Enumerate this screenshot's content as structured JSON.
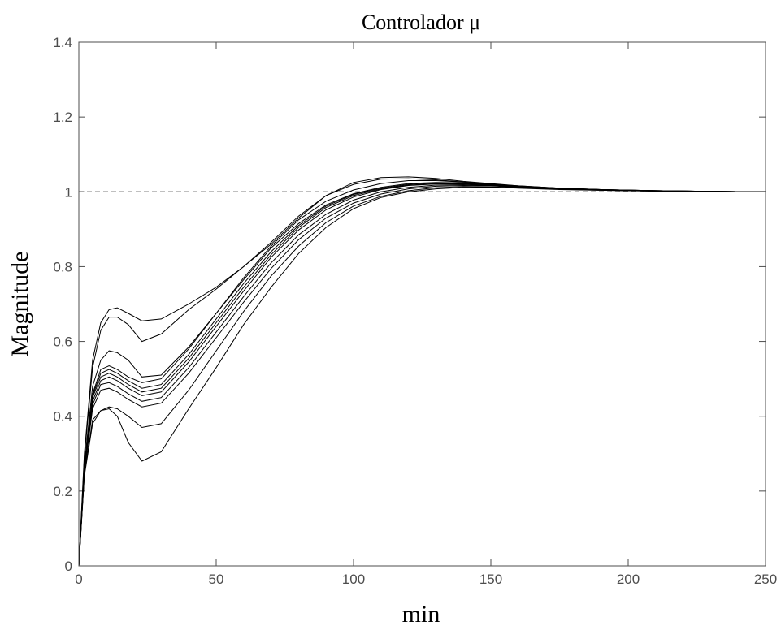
{
  "chart_data": {
    "type": "line",
    "title": "Controlador μ",
    "xlabel": "min",
    "ylabel": "Magnitude",
    "xlim": [
      0,
      250
    ],
    "ylim": [
      0,
      1.4
    ],
    "xticks": [
      0,
      50,
      100,
      150,
      200,
      250
    ],
    "yticks": [
      0,
      0.2,
      0.4,
      0.6,
      0.8,
      1,
      1.2,
      1.4
    ],
    "xtick_labels": [
      "0",
      "50",
      "100",
      "150",
      "200",
      "250"
    ],
    "ytick_labels": [
      "0",
      "0.2",
      "0.4",
      "0.6",
      "0.8",
      "1",
      "1.2",
      "1.4"
    ],
    "grid": false,
    "reference_line": {
      "y": 1,
      "style": "dashed"
    },
    "x": [
      0,
      2,
      5,
      8,
      11,
      14,
      18,
      23,
      30,
      40,
      50,
      60,
      70,
      80,
      90,
      100,
      110,
      120,
      130,
      140,
      150,
      160,
      175,
      190,
      210,
      230,
      250
    ],
    "series": [
      {
        "values": [
          0,
          0.3,
          0.55,
          0.65,
          0.685,
          0.69,
          0.675,
          0.655,
          0.66,
          0.7,
          0.745,
          0.8,
          0.86,
          0.93,
          0.99,
          1.025,
          1.038,
          1.04,
          1.036,
          1.028,
          1.022,
          1.016,
          1.01,
          1.006,
          1.003,
          1.001,
          1.0
        ]
      },
      {
        "values": [
          0,
          0.29,
          0.53,
          0.63,
          0.665,
          0.665,
          0.645,
          0.6,
          0.62,
          0.685,
          0.74,
          0.8,
          0.865,
          0.935,
          0.99,
          1.02,
          1.034,
          1.035,
          1.032,
          1.026,
          1.02,
          1.014,
          1.009,
          1.005,
          1.002,
          1.001,
          1.0
        ]
      },
      {
        "values": [
          0,
          0.27,
          0.48,
          0.55,
          0.575,
          0.57,
          0.55,
          0.505,
          0.51,
          0.585,
          0.675,
          0.77,
          0.855,
          0.925,
          0.975,
          1.005,
          1.022,
          1.03,
          1.03,
          1.026,
          1.021,
          1.016,
          1.01,
          1.006,
          1.003,
          1.001,
          1.0
        ]
      },
      {
        "values": [
          0,
          0.26,
          0.46,
          0.525,
          0.535,
          0.525,
          0.505,
          0.49,
          0.5,
          0.58,
          0.675,
          0.765,
          0.85,
          0.915,
          0.965,
          0.995,
          1.012,
          1.022,
          1.025,
          1.024,
          1.02,
          1.015,
          1.01,
          1.006,
          1.003,
          1.001,
          1.0
        ]
      },
      {
        "values": [
          0,
          0.26,
          0.455,
          0.515,
          0.525,
          0.515,
          0.495,
          0.475,
          0.485,
          0.565,
          0.66,
          0.755,
          0.84,
          0.91,
          0.962,
          0.993,
          1.01,
          1.02,
          1.024,
          1.023,
          1.02,
          1.015,
          1.01,
          1.006,
          1.003,
          1.001,
          1.0
        ]
      },
      {
        "values": [
          0,
          0.255,
          0.45,
          0.505,
          0.515,
          0.505,
          0.485,
          0.465,
          0.475,
          0.555,
          0.65,
          0.745,
          0.832,
          0.905,
          0.958,
          0.99,
          1.008,
          1.018,
          1.022,
          1.022,
          1.019,
          1.014,
          1.009,
          1.006,
          1.003,
          1.001,
          1.0
        ]
      },
      {
        "values": [
          0,
          0.255,
          0.44,
          0.495,
          0.505,
          0.495,
          0.475,
          0.455,
          0.465,
          0.545,
          0.64,
          0.735,
          0.825,
          0.898,
          0.952,
          0.986,
          1.006,
          1.017,
          1.021,
          1.021,
          1.018,
          1.014,
          1.009,
          1.005,
          1.003,
          1.001,
          1.0
        ]
      },
      {
        "values": [
          0,
          0.25,
          0.43,
          0.485,
          0.49,
          0.48,
          0.46,
          0.44,
          0.45,
          0.53,
          0.625,
          0.72,
          0.81,
          0.885,
          0.94,
          0.978,
          1.0,
          1.012,
          1.018,
          1.019,
          1.017,
          1.013,
          1.009,
          1.005,
          1.002,
          1.001,
          1.0
        ]
      },
      {
        "values": [
          0,
          0.25,
          0.42,
          0.47,
          0.475,
          0.465,
          0.445,
          0.425,
          0.435,
          0.515,
          0.61,
          0.705,
          0.795,
          0.872,
          0.93,
          0.97,
          0.994,
          1.008,
          1.015,
          1.017,
          1.016,
          1.012,
          1.008,
          1.005,
          1.002,
          1.001,
          1.0
        ]
      },
      {
        "values": [
          0,
          0.245,
          0.39,
          0.415,
          0.425,
          0.42,
          0.4,
          0.37,
          0.38,
          0.47,
          0.575,
          0.68,
          0.775,
          0.855,
          0.918,
          0.962,
          0.988,
          1.003,
          1.011,
          1.014,
          1.013,
          1.011,
          1.007,
          1.004,
          1.002,
          1.001,
          1.0
        ]
      },
      {
        "values": [
          0,
          0.24,
          0.38,
          0.415,
          0.42,
          0.4,
          0.33,
          0.28,
          0.305,
          0.42,
          0.53,
          0.645,
          0.745,
          0.835,
          0.905,
          0.955,
          0.985,
          1.0,
          1.008,
          1.012,
          1.012,
          1.01,
          1.006,
          1.004,
          1.002,
          1.001,
          1.0
        ]
      }
    ]
  }
}
